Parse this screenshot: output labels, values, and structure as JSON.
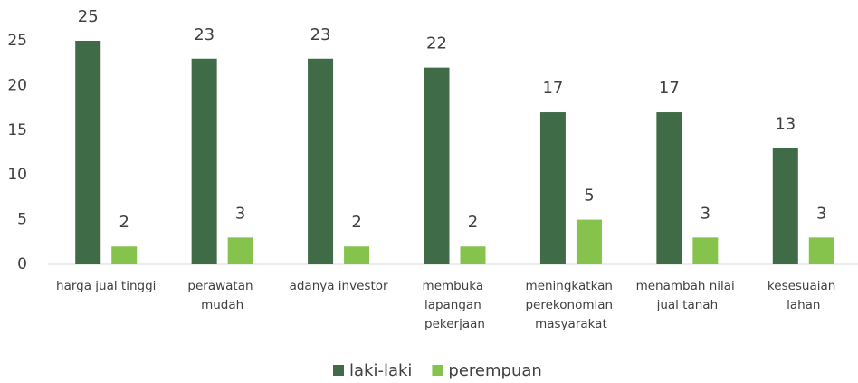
{
  "chart_data": {
    "type": "bar",
    "categories": [
      "harga jual tinggi",
      "perawatan mudah",
      "adanya investor",
      "membuka lapangan pekerjaan",
      "meningkatkan perekonomian masyarakat",
      "menambah nilai jual tanah",
      "kesesuaian lahan"
    ],
    "series": [
      {
        "name": "laki-laki",
        "color": "#3f6b47",
        "values": [
          25,
          23,
          23,
          22,
          17,
          17,
          13
        ]
      },
      {
        "name": "perempuan",
        "color": "#86c34d",
        "values": [
          2,
          3,
          2,
          2,
          5,
          3,
          3
        ]
      }
    ],
    "ylim": [
      0,
      25
    ],
    "yticks": [
      0,
      5,
      10,
      15,
      20,
      25
    ],
    "grid": false,
    "legend": "bottom"
  }
}
